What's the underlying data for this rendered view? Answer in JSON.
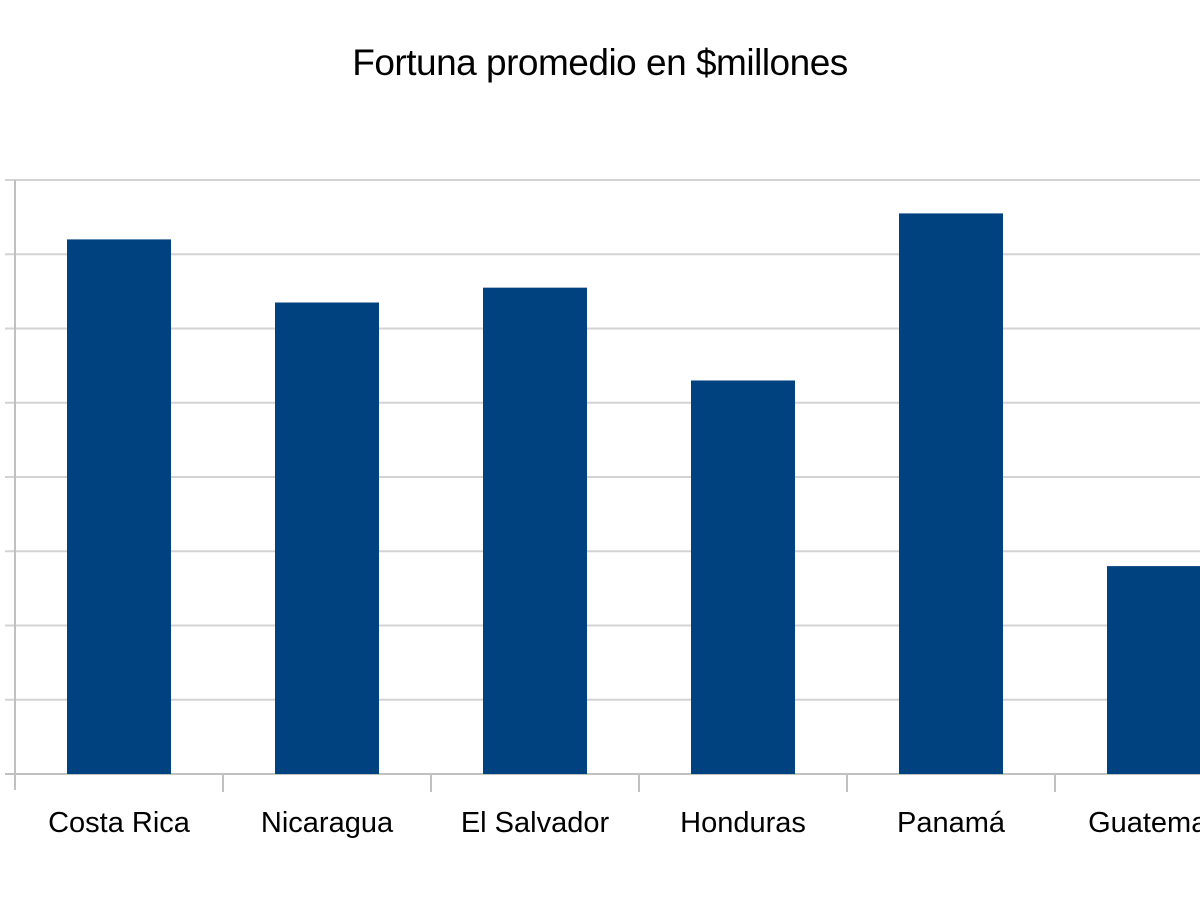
{
  "chart_data": {
    "type": "bar",
    "title": "Fortuna promedio en $millones",
    "categories": [
      "Costa Rica",
      "Nicaragua",
      "El Salvador",
      "Honduras",
      "Panamá",
      "Guatemala"
    ],
    "values": [
      7.2,
      6.35,
      6.55,
      5.3,
      7.55,
      2.8
    ],
    "ylim": [
      0,
      8
    ],
    "grid": true,
    "bar_color": "#00427f",
    "grid_color": "#d3d3d3",
    "axis_color": "#c0c0c0",
    "xlabel": "",
    "ylabel": ""
  }
}
